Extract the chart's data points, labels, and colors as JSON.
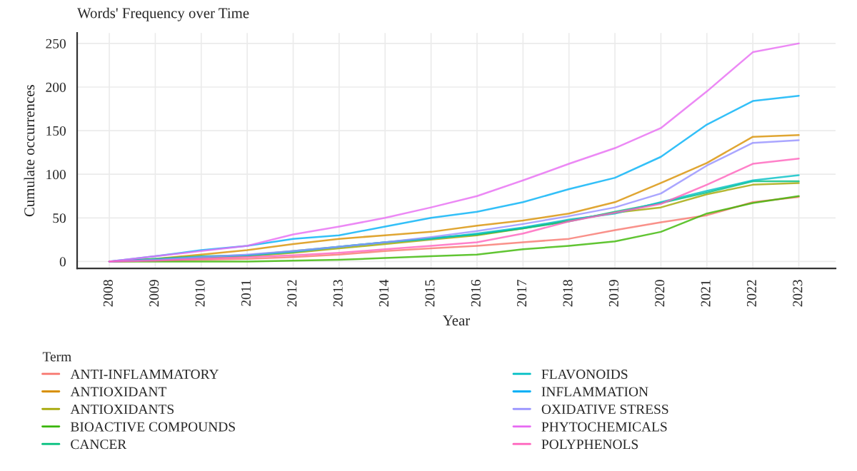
{
  "chart_data": {
    "type": "line",
    "title": "Words' Frequency over Time",
    "xlabel": "Year",
    "ylabel": "Cumulate occurrences",
    "legend_title": "Term",
    "legend": "bottom",
    "grid": true,
    "x": [
      2008,
      2009,
      2010,
      2011,
      2012,
      2013,
      2014,
      2015,
      2016,
      2017,
      2018,
      2019,
      2020,
      2021,
      2022,
      2023
    ],
    "xlim": [
      2007.3,
      2023.8
    ],
    "xticks": [
      2008,
      2009,
      2010,
      2011,
      2012,
      2013,
      2014,
      2015,
      2016,
      2017,
      2018,
      2019,
      2020,
      2021,
      2022,
      2023
    ],
    "ylim": [
      -8,
      262
    ],
    "yticks": [
      0,
      50,
      100,
      150,
      200,
      250
    ],
    "series": [
      {
        "name": "ANTI-INFLAMMATORY",
        "color": "#f8766d",
        "values": [
          0,
          1,
          2,
          3,
          5,
          8,
          12,
          15,
          18,
          22,
          26,
          36,
          45,
          53,
          68,
          74
        ]
      },
      {
        "name": "ANTIOXIDANT",
        "color": "#d89000",
        "values": [
          0,
          3,
          8,
          13,
          20,
          26,
          30,
          34,
          41,
          47,
          55,
          68,
          90,
          113,
          143,
          145
        ]
      },
      {
        "name": "ANTIOXIDANTS",
        "color": "#a3a500",
        "values": [
          0,
          2,
          4,
          6,
          10,
          15,
          20,
          25,
          30,
          38,
          47,
          56,
          62,
          77,
          88,
          90
        ]
      },
      {
        "name": "BIOACTIVE COMPOUNDS",
        "color": "#39b600",
        "values": [
          0,
          0,
          0,
          0,
          1,
          2,
          4,
          6,
          8,
          14,
          18,
          23,
          34,
          55,
          67,
          75
        ]
      },
      {
        "name": "CANCER",
        "color": "#00bf7d",
        "values": [
          0,
          3,
          6,
          7,
          12,
          17,
          22,
          27,
          31,
          38,
          46,
          57,
          67,
          79,
          92,
          92
        ]
      },
      {
        "name": "FLAVONOIDS",
        "color": "#00bfc4",
        "values": [
          0,
          2,
          5,
          7,
          11,
          17,
          22,
          26,
          32,
          39,
          48,
          55,
          68,
          81,
          93,
          99
        ]
      },
      {
        "name": "INFLAMMATION",
        "color": "#00b0f6",
        "values": [
          0,
          6,
          13,
          18,
          26,
          30,
          40,
          50,
          57,
          68,
          83,
          96,
          120,
          157,
          184,
          190
        ]
      },
      {
        "name": "OXIDATIVE STRESS",
        "color": "#9590ff",
        "values": [
          0,
          2,
          5,
          8,
          12,
          17,
          22,
          28,
          35,
          43,
          52,
          62,
          78,
          110,
          136,
          139
        ]
      },
      {
        "name": "PHYTOCHEMICALS",
        "color": "#e76bf3",
        "values": [
          0,
          6,
          12,
          18,
          31,
          40,
          50,
          62,
          75,
          93,
          112,
          130,
          153,
          195,
          240,
          250
        ]
      },
      {
        "name": "POLYPHENOLS",
        "color": "#ff62bc",
        "values": [
          0,
          1,
          3,
          5,
          7,
          10,
          14,
          18,
          22,
          32,
          46,
          56,
          66,
          88,
          112,
          118
        ]
      }
    ]
  }
}
